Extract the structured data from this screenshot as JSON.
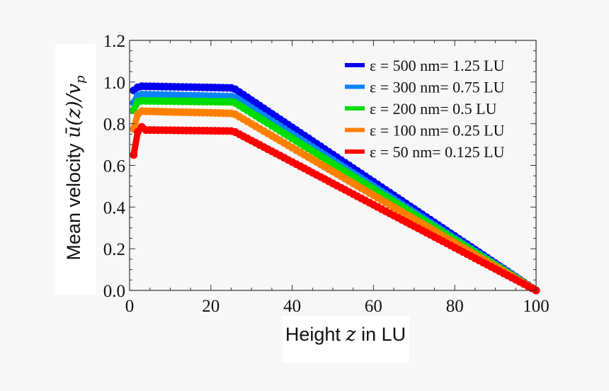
{
  "chart_data": {
    "type": "line",
    "xlabel": "Height z in LU",
    "ylabel": "Mean velocity ū(z)/v_p",
    "xlabel_parts": {
      "pre": "Height ",
      "var": "z",
      "post": " in LU"
    },
    "ylabel_parts": {
      "pre": "Mean velocity ",
      "var": "ū(z)/v",
      "sub": "p"
    },
    "xlim": [
      0,
      100
    ],
    "ylim": [
      0,
      1.2
    ],
    "xticks": [
      "0",
      "20",
      "40",
      "60",
      "80",
      "100"
    ],
    "yticks": [
      "0.0",
      "0.2",
      "0.4",
      "0.6",
      "0.8",
      "1.0",
      "1.2"
    ],
    "grid": false,
    "legend_position": "top-right",
    "series": [
      {
        "name": "ε = 500 nm= 1.25 LU",
        "color": "#0000ee",
        "x": [
          1,
          2,
          3,
          25,
          26,
          100
        ],
        "y": [
          0.96,
          0.975,
          0.98,
          0.972,
          0.965,
          0.0
        ]
      },
      {
        "name": "ε = 300 nm= 0.75 LU",
        "color": "#0a84ff",
        "x": [
          1,
          2,
          3,
          25,
          26,
          100
        ],
        "y": [
          0.9,
          0.935,
          0.94,
          0.93,
          0.925,
          0.0
        ]
      },
      {
        "name": "ε = 200 nm= 0.5 LU",
        "color": "#00dd00",
        "x": [
          1,
          2,
          3,
          25,
          26,
          100
        ],
        "y": [
          0.865,
          0.905,
          0.91,
          0.905,
          0.9,
          0.0
        ]
      },
      {
        "name": "ε = 100 nm= 0.25 LU",
        "color": "#ff8000",
        "x": [
          1,
          2,
          3,
          25,
          26,
          100
        ],
        "y": [
          0.775,
          0.845,
          0.86,
          0.85,
          0.845,
          0.0
        ]
      },
      {
        "name": "ε = 50 nm= 0.125 LU",
        "color": "#ff0000",
        "x": [
          1,
          2,
          3,
          4,
          25,
          26,
          100
        ],
        "y": [
          0.65,
          0.76,
          0.785,
          0.77,
          0.765,
          0.76,
          0.0
        ]
      }
    ]
  }
}
